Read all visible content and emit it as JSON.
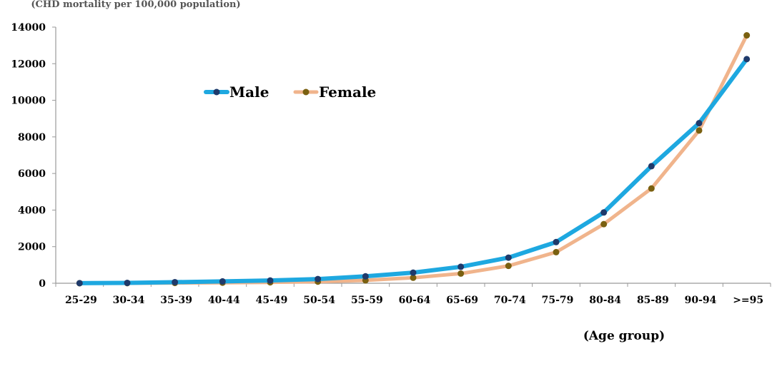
{
  "chart_data": {
    "type": "line",
    "title": "(CHD mortality per 100,000 population)",
    "xlabel": "(Age group)",
    "ylabel": "",
    "ylim": [
      0,
      14000
    ],
    "yticks": [
      0,
      2000,
      4000,
      6000,
      8000,
      10000,
      12000,
      14000
    ],
    "grid": false,
    "legend_position": "top-left",
    "categories": [
      "25-29",
      "30-34",
      "35-39",
      "40-44",
      "45-49",
      "50-54",
      "55-59",
      "60-64",
      "65-69",
      "70-74",
      "75-79",
      "80-84",
      "85-89",
      "90-94",
      ">=95"
    ],
    "series": [
      {
        "name": "Male",
        "line_color": "#1ea8e0",
        "marker_color": "#1f3a6b",
        "values": [
          5,
          20,
          60,
          100,
          150,
          230,
          380,
          580,
          900,
          1400,
          2250,
          3870,
          6400,
          8750,
          12250
        ]
      },
      {
        "name": "Female",
        "line_color": "#f0b48c",
        "marker_color": "#7a6010",
        "values": [
          2,
          5,
          15,
          30,
          50,
          90,
          160,
          300,
          530,
          950,
          1700,
          3230,
          5180,
          8350,
          13550
        ]
      }
    ]
  }
}
